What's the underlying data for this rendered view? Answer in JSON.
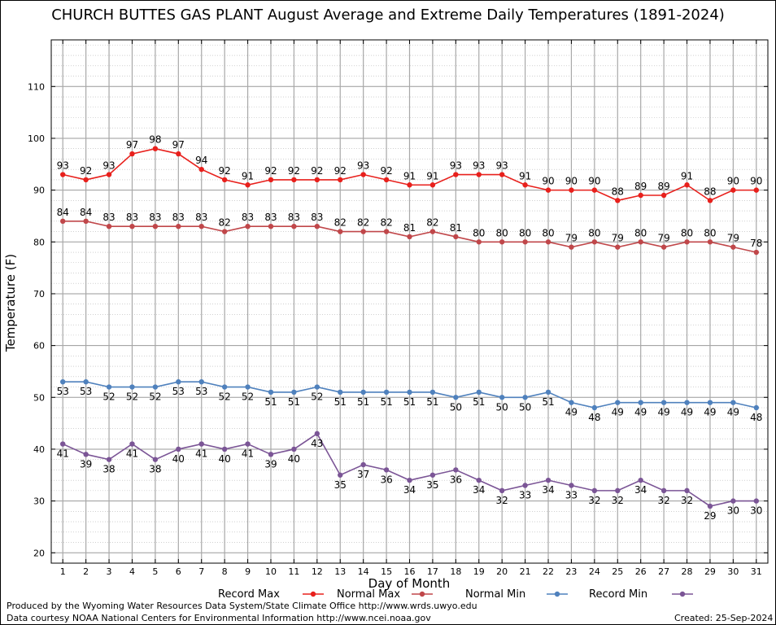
{
  "title": "CHURCH BUTTES GAS PLANT August Average and Extreme Daily Temperatures (1891-2024)",
  "footer": {
    "produced_by": "Produced by the Wyoming Water Resources Data System/State Climate Office http://www.wrds.uwyo.edu",
    "courtesy": "Data courtesy NOAA National Centers for Environmental Information http://www.ncei.noaa.gov",
    "created": "Created:  25-Sep-2024"
  },
  "chart_data": {
    "type": "line",
    "title": "CHURCH BUTTES GAS PLANT August Average and Extreme Daily Temperatures (1891-2024)",
    "xlabel": "Day of Month",
    "ylabel": "Temperature (F)",
    "x": [
      1,
      2,
      3,
      4,
      5,
      6,
      7,
      8,
      9,
      10,
      11,
      12,
      13,
      14,
      15,
      16,
      17,
      18,
      19,
      20,
      21,
      22,
      23,
      24,
      25,
      26,
      27,
      28,
      29,
      30,
      31
    ],
    "xlim": [
      0.5,
      31.5
    ],
    "ylim": [
      18,
      119
    ],
    "yticks": [
      20,
      30,
      40,
      50,
      60,
      70,
      80,
      90,
      100,
      110
    ],
    "grid": true,
    "legend_position": "bottom",
    "series": [
      {
        "name": "Record Max",
        "color": "#e8201c",
        "label_pos": "above",
        "values": [
          93,
          92,
          93,
          97,
          98,
          97,
          94,
          92,
          91,
          92,
          92,
          92,
          92,
          93,
          92,
          91,
          91,
          93,
          93,
          93,
          91,
          90,
          90,
          90,
          88,
          89,
          89,
          91,
          88,
          90,
          90
        ]
      },
      {
        "name": "Normal Max",
        "color": "#c0474a",
        "label_pos": "above",
        "values": [
          84,
          84,
          83,
          83,
          83,
          83,
          83,
          82,
          83,
          83,
          83,
          83,
          82,
          82,
          82,
          81,
          82,
          81,
          80,
          80,
          80,
          80,
          79,
          80,
          79,
          80,
          79,
          80,
          80,
          79,
          78
        ]
      },
      {
        "name": "Normal Min",
        "color": "#4f81bd",
        "label_pos": "below",
        "values": [
          53,
          53,
          52,
          52,
          52,
          53,
          53,
          52,
          52,
          51,
          51,
          52,
          51,
          51,
          51,
          51,
          51,
          50,
          51,
          50,
          50,
          51,
          49,
          48,
          49,
          49,
          49,
          49,
          49,
          49,
          48
        ]
      },
      {
        "name": "Record Min",
        "color": "#7b5596",
        "label_pos": "below",
        "values": [
          41,
          39,
          38,
          41,
          38,
          40,
          41,
          40,
          41,
          39,
          40,
          43,
          35,
          37,
          36,
          34,
          35,
          36,
          34,
          32,
          33,
          34,
          33,
          32,
          32,
          34,
          32,
          32,
          29,
          30,
          30
        ]
      }
    ]
  }
}
